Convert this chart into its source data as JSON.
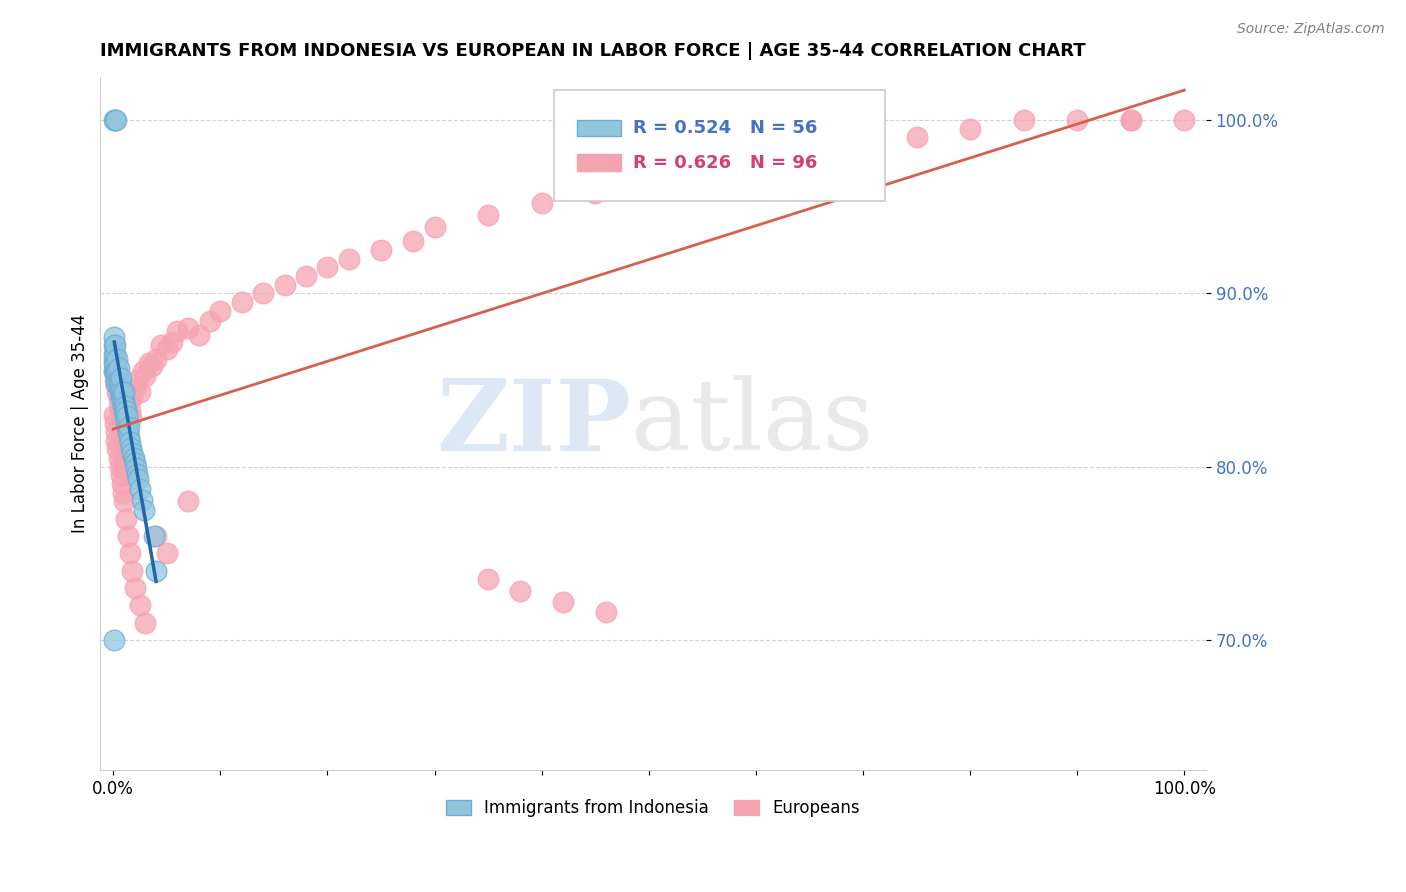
{
  "title": "IMMIGRANTS FROM INDONESIA VS EUROPEAN IN LABOR FORCE | AGE 35-44 CORRELATION CHART",
  "source": "Source: ZipAtlas.com",
  "ylabel": "In Labor Force | Age 35-44",
  "indonesia_color": "#92c5de",
  "european_color": "#f4a4b0",
  "indonesia_line_color": "#2166ac",
  "european_line_color": "#d6604d",
  "indonesia_edge_color": "#6baed6",
  "european_edge_color": "#fa9fb5",
  "watermark_zip": "ZIP",
  "watermark_atlas": "atlas",
  "legend_r_indo": "R = 0.524",
  "legend_n_indo": "N = 56",
  "legend_r_euro": "R = 0.626",
  "legend_n_euro": "N = 96",
  "legend_color_indo": "#4472c4",
  "legend_color_euro": "#d63f6e",
  "ytick_vals": [
    0.7,
    0.8,
    0.9,
    1.0
  ],
  "ytick_labels": [
    "70.0%",
    "80.0%",
    "90.0%",
    "100.0%"
  ],
  "ylim": [
    0.625,
    1.025
  ],
  "xlim": [
    -0.012,
    1.02
  ],
  "indo_x": [
    0.001,
    0.001,
    0.001,
    0.001,
    0.001,
    0.002,
    0.002,
    0.002,
    0.002,
    0.003,
    0.003,
    0.003,
    0.004,
    0.004,
    0.004,
    0.005,
    0.005,
    0.005,
    0.006,
    0.006,
    0.007,
    0.007,
    0.007,
    0.008,
    0.008,
    0.009,
    0.009,
    0.01,
    0.01,
    0.01,
    0.011,
    0.011,
    0.012,
    0.012,
    0.013,
    0.013,
    0.014,
    0.015,
    0.015,
    0.016,
    0.017,
    0.018,
    0.019,
    0.02,
    0.021,
    0.022,
    0.023,
    0.025,
    0.027,
    0.029,
    0.001,
    0.002,
    0.003,
    0.001,
    0.038,
    0.04
  ],
  "indo_y": [
    0.855,
    0.86,
    0.865,
    0.87,
    0.875,
    0.855,
    0.86,
    0.865,
    0.87,
    0.855,
    0.848,
    0.854,
    0.85,
    0.856,
    0.862,
    0.846,
    0.851,
    0.857,
    0.843,
    0.848,
    0.84,
    0.845,
    0.851,
    0.838,
    0.843,
    0.835,
    0.841,
    0.832,
    0.837,
    0.843,
    0.829,
    0.835,
    0.826,
    0.832,
    0.823,
    0.829,
    0.82,
    0.817,
    0.823,
    0.814,
    0.811,
    0.808,
    0.805,
    0.802,
    0.799,
    0.796,
    0.793,
    0.787,
    0.781,
    0.775,
    1.0,
    1.0,
    1.0,
    0.7,
    0.76,
    0.74
  ],
  "euro_x": [
    0.001,
    0.001,
    0.002,
    0.002,
    0.002,
    0.003,
    0.003,
    0.004,
    0.004,
    0.005,
    0.005,
    0.006,
    0.006,
    0.007,
    0.007,
    0.008,
    0.008,
    0.009,
    0.009,
    0.01,
    0.01,
    0.011,
    0.011,
    0.012,
    0.012,
    0.013,
    0.014,
    0.015,
    0.016,
    0.017,
    0.018,
    0.02,
    0.022,
    0.025,
    0.028,
    0.03,
    0.033,
    0.036,
    0.04,
    0.045,
    0.05,
    0.055,
    0.06,
    0.07,
    0.08,
    0.09,
    0.1,
    0.12,
    0.14,
    0.16,
    0.18,
    0.2,
    0.22,
    0.25,
    0.28,
    0.3,
    0.35,
    0.4,
    0.45,
    0.5,
    0.55,
    0.6,
    0.65,
    0.7,
    0.75,
    0.8,
    0.85,
    0.9,
    0.95,
    1.0,
    0.001,
    0.002,
    0.003,
    0.003,
    0.004,
    0.005,
    0.006,
    0.007,
    0.008,
    0.009,
    0.01,
    0.012,
    0.014,
    0.016,
    0.018,
    0.02,
    0.025,
    0.03,
    0.04,
    0.05,
    0.07,
    0.35,
    0.38,
    0.42,
    0.46,
    0.95
  ],
  "euro_y": [
    0.855,
    0.862,
    0.85,
    0.857,
    0.864,
    0.847,
    0.853,
    0.843,
    0.85,
    0.838,
    0.845,
    0.833,
    0.84,
    0.828,
    0.835,
    0.822,
    0.829,
    0.816,
    0.823,
    0.81,
    0.817,
    0.804,
    0.811,
    0.798,
    0.805,
    0.836,
    0.83,
    0.838,
    0.832,
    0.828,
    0.84,
    0.845,
    0.85,
    0.843,
    0.855,
    0.852,
    0.86,
    0.858,
    0.862,
    0.87,
    0.868,
    0.872,
    0.878,
    0.88,
    0.876,
    0.884,
    0.89,
    0.895,
    0.9,
    0.905,
    0.91,
    0.915,
    0.92,
    0.925,
    0.93,
    0.938,
    0.945,
    0.952,
    0.958,
    0.965,
    0.97,
    0.975,
    0.98,
    0.985,
    0.99,
    0.995,
    1.0,
    1.0,
    1.0,
    1.0,
    0.83,
    0.825,
    0.82,
    0.815,
    0.81,
    0.805,
    0.8,
    0.795,
    0.79,
    0.785,
    0.78,
    0.77,
    0.76,
    0.75,
    0.74,
    0.73,
    0.72,
    0.71,
    0.76,
    0.75,
    0.78,
    0.735,
    0.728,
    0.722,
    0.716,
    1.0
  ]
}
